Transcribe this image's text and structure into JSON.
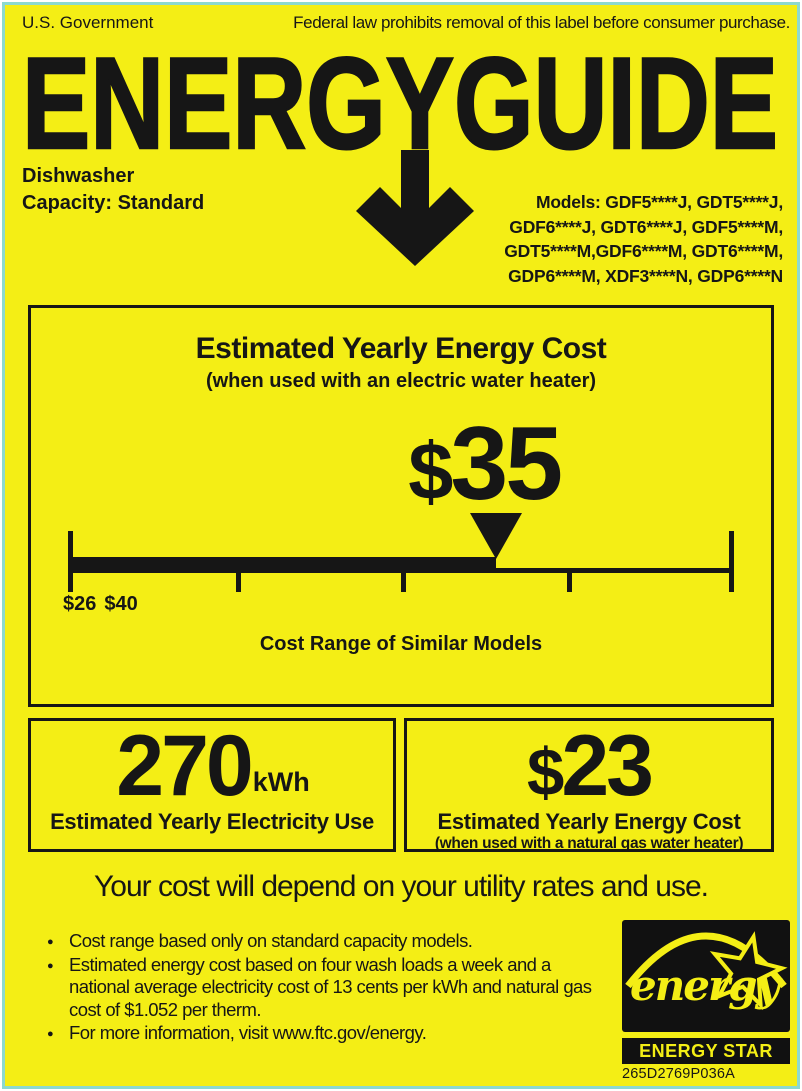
{
  "header": {
    "left": "U.S. Government",
    "right": "Federal law prohibits removal of this label before consumer purchase."
  },
  "logo": {
    "title": "ENERGYGUIDE"
  },
  "product": {
    "type": "Dishwasher",
    "capacity": "Capacity: Standard"
  },
  "models": {
    "line1": "Models: GDF5****J, GDT5****J,",
    "line2": "GDF6****J, GDT6****J, GDF5****M,",
    "line3": "GDT5****M,GDF6****M, GDT6****M,",
    "line4": "GDP6****M, XDF3****N, GDP6****N"
  },
  "main_box": {
    "title": "Estimated Yearly Energy Cost",
    "subtitle": "(when used with an electric water heater)",
    "currency": "$",
    "amount": "35",
    "scale": {
      "min": 26,
      "max": 40,
      "value": 35,
      "min_label": "$26",
      "max_label": "$40"
    },
    "caption": "Cost Range of Similar Models"
  },
  "electricity_box": {
    "amount": "270",
    "unit": "kWh",
    "caption": "Estimated Yearly Electricity Use"
  },
  "gas_box": {
    "currency": "$",
    "amount": "23",
    "caption": "Estimated Yearly Energy Cost",
    "subcaption": "(when used with a natural gas water heater)"
  },
  "note": "Your cost will depend on your utility rates and use.",
  "bullets": [
    "Cost range based only on standard capacity models.",
    "Estimated energy cost based on four wash loads a week and a\nnational average electricity cost of 13 cents per kWh and natural gas\ncost of $1.052 per therm.",
    "For more information, visit www.ftc.gov/energy."
  ],
  "energy_star": {
    "script": "energy",
    "wordmark": "ENERGY STAR",
    "part_number": "265D2769P036A"
  },
  "colors": {
    "background": "#f4ee15",
    "border": "#8cd9d0",
    "ink": "#161616"
  }
}
